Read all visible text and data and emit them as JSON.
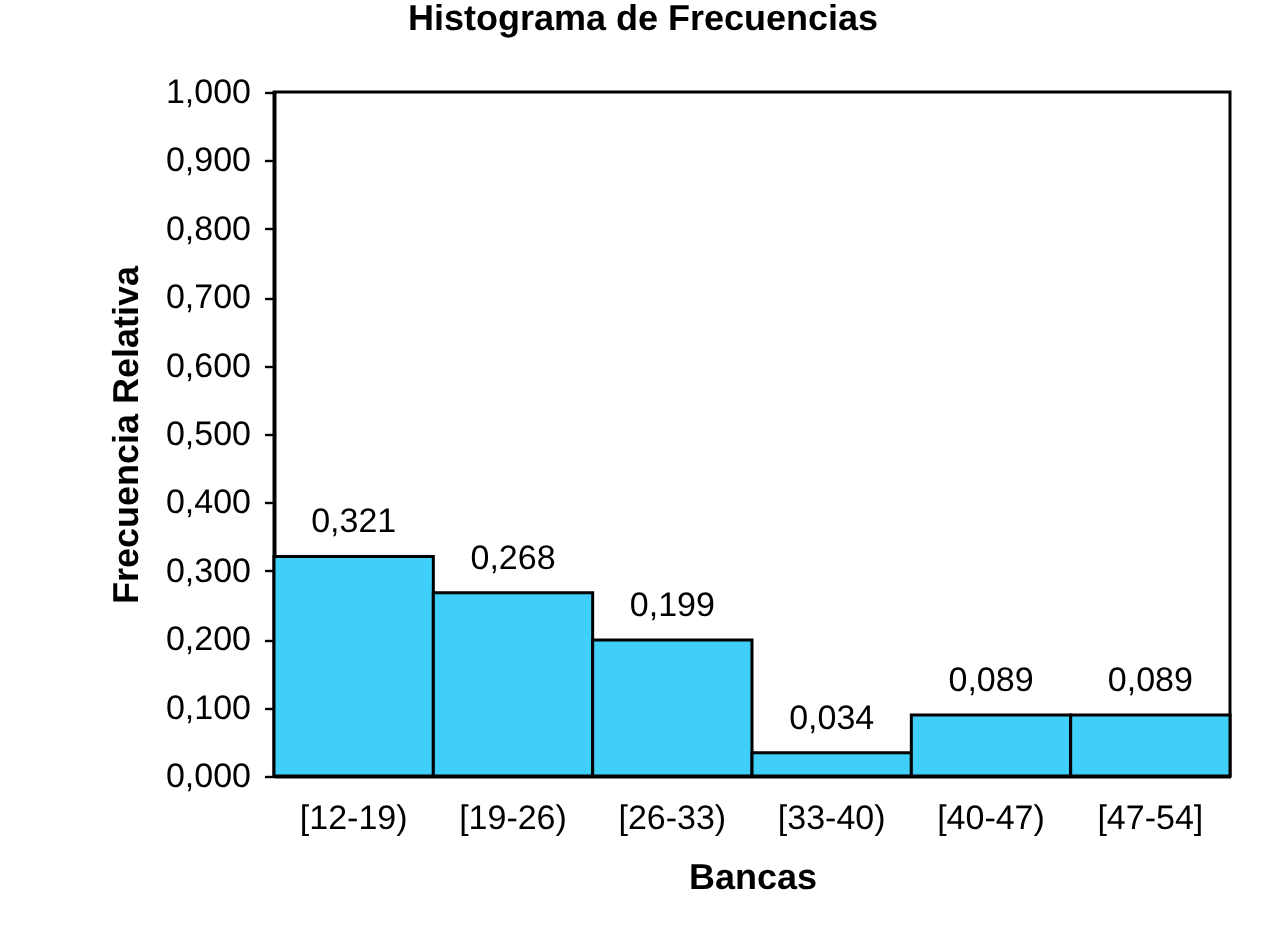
{
  "chart_data": {
    "type": "bar",
    "title": "Histograma de Frecuencias",
    "xlabel": "Bancas",
    "ylabel": "Frecuencia Relativa",
    "categories": [
      "[12-19)",
      "[19-26)",
      "[26-33)",
      "[33-40)",
      "[40-47)",
      "[47-54]"
    ],
    "values": [
      0.321,
      0.268,
      0.199,
      0.034,
      0.089,
      0.089
    ],
    "color": "#40cff8",
    "value_labels": [
      "0,321",
      "0,268",
      "0,199",
      "0,034",
      "0,089",
      "0,089"
    ],
    "ylim": [
      0,
      1
    ],
    "yticks": [
      {
        "value": 0,
        "label": "0,000"
      },
      {
        "value": 0.1,
        "label": "0,100"
      },
      {
        "value": 0.2,
        "label": "0,200"
      },
      {
        "value": 0.3,
        "label": "0,300"
      },
      {
        "value": 0.4,
        "label": "0,400"
      },
      {
        "value": 0.5,
        "label": "0,500"
      },
      {
        "value": 0.6,
        "label": "0,600"
      },
      {
        "value": 0.7,
        "label": "0,700"
      },
      {
        "value": 0.8,
        "label": "0,800"
      },
      {
        "value": 0.9,
        "label": "0,900"
      },
      {
        "value": 1,
        "label": "1,000"
      }
    ]
  }
}
